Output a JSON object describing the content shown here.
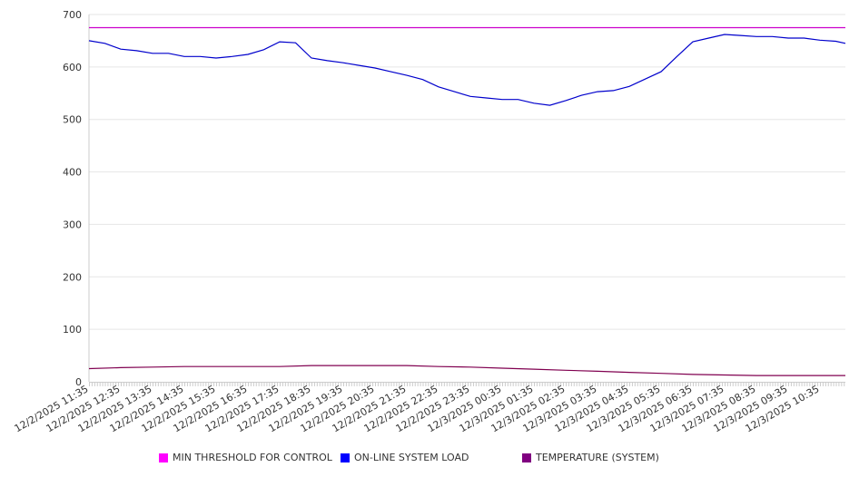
{
  "chart_data": {
    "type": "line",
    "title": "",
    "xlabel": "",
    "ylabel": "",
    "ylim": [
      0,
      700
    ],
    "yticks": [
      "0",
      "100",
      "200",
      "300",
      "400",
      "500",
      "600",
      "700"
    ],
    "grid": true,
    "legend_position": "bottom",
    "x_tick_labels": [
      "12/2/2025 11:35",
      "12/2/2025 12:35",
      "12/2/2025 13:35",
      "12/2/2025 14:35",
      "12/2/2025 15:35",
      "12/2/2025 16:35",
      "12/2/2025 17:35",
      "12/2/2025 18:35",
      "12/2/2025 19:35",
      "12/2/2025 20:35",
      "12/2/2025 21:35",
      "12/2/2025 22:35",
      "12/2/2025 23:35",
      "12/3/2025 00:35",
      "12/3/2025 01:35",
      "12/3/2025 02:35",
      "12/3/2025 03:35",
      "12/3/2025 04:35",
      "12/3/2025 05:35",
      "12/3/2025 06:35",
      "12/3/2025 07:35",
      "12/3/2025 08:35",
      "12/3/2025 09:35",
      "12/3/2025 10:35"
    ],
    "x_hours_range": [
      0,
      23.8
    ],
    "series": [
      {
        "name": "MIN THRESHOLD FOR CONTROL",
        "color": "#ff00ff",
        "line_color": "#cc00cc",
        "x": [
          0,
          23.8
        ],
        "values": [
          675,
          675
        ]
      },
      {
        "name": "ON-LINE SYSTEM LOAD",
        "color": "#0000ff",
        "line_color": "#0000cc",
        "x": [
          0,
          0.5,
          1,
          1.5,
          2,
          2.5,
          3,
          3.5,
          4,
          4.5,
          5,
          5.5,
          6,
          6.5,
          7,
          7.5,
          8,
          8.5,
          9,
          9.5,
          10,
          10.5,
          11,
          11.5,
          12,
          12.5,
          13,
          13.5,
          14,
          14.5,
          15,
          15.5,
          16,
          16.5,
          17,
          17.5,
          18,
          18.5,
          19,
          19.5,
          20,
          20.5,
          21,
          21.5,
          22,
          22.5,
          23,
          23.5,
          23.8
        ],
        "values": [
          650,
          645,
          634,
          631,
          626,
          626,
          620,
          620,
          617,
          620,
          624,
          633,
          648,
          646,
          617,
          612,
          608,
          603,
          598,
          591,
          584,
          576,
          562,
          553,
          544,
          541,
          538,
          538,
          531,
          527,
          536,
          546,
          553,
          555,
          563,
          577,
          591,
          620,
          648,
          655,
          662,
          660,
          658,
          658,
          655,
          655,
          651,
          649,
          645
        ]
      },
      {
        "name": "TEMPERATURE (SYSTEM)",
        "color": "#800080",
        "line_color": "#800050",
        "x": [
          0,
          1,
          2,
          3,
          4,
          5,
          6,
          7,
          8,
          9,
          10,
          11,
          12,
          13,
          14,
          15,
          16,
          17,
          18,
          19,
          20,
          21,
          22,
          23,
          23.8
        ],
        "values": [
          25,
          27,
          28,
          29,
          29,
          29,
          29,
          31,
          31,
          31,
          31,
          29,
          28,
          26,
          24,
          22,
          20,
          18,
          16,
          14,
          13,
          12,
          12,
          12,
          12
        ]
      }
    ]
  }
}
